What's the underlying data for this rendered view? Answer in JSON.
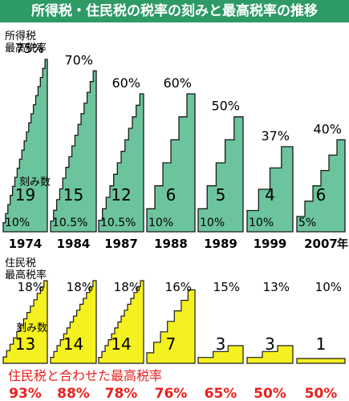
{
  "chart_data": {
    "type": "bar",
    "title": "所得税・住民税の税率の刻みと最高税率の推移",
    "colors": {
      "title_bg": "#2e9a66",
      "income_fill": "#6cc49c",
      "resident_fill": "#f5f020",
      "combined_text": "#e8201e"
    },
    "categories": [
      "1974",
      "1984",
      "1987",
      "1988",
      "1989",
      "1999",
      "2007"
    ],
    "year_suffix": "年",
    "income_tax": {
      "label_line1": "所得税",
      "label_line2": "最高税率",
      "brackets_label": "刻み数",
      "top_rate": [
        "75%",
        "70%",
        "60%",
        "60%",
        "50%",
        "37%",
        "40%"
      ],
      "top_rate_values": [
        75,
        70,
        60,
        60,
        50,
        37,
        40
      ],
      "brackets": [
        "19",
        "15",
        "12",
        "6",
        "5",
        "4",
        "6"
      ],
      "lowest_rate": [
        "10%",
        "10.5%",
        "10.5%",
        "10%",
        "10%",
        "10%",
        "5%"
      ]
    },
    "resident_tax": {
      "label_line1": "住民税",
      "label_line2": "最高税率",
      "brackets_label": "刻み数",
      "top_rate": [
        "18%",
        "18%",
        "18%",
        "16%",
        "15%",
        "13%",
        "10%"
      ],
      "top_rate_values": [
        18,
        18,
        18,
        16,
        15,
        13,
        10
      ],
      "brackets": [
        "13",
        "14",
        "14",
        "7",
        "3",
        "3",
        "1"
      ]
    },
    "combined": {
      "label": "住民税と合わせた最高税率",
      "values": [
        "93%",
        "88%",
        "78%",
        "76%",
        "65%",
        "50%",
        "50%"
      ]
    }
  }
}
